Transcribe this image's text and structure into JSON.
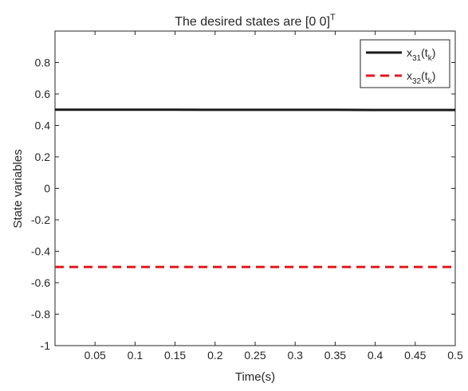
{
  "chart_data": {
    "type": "line",
    "title": {
      "base": "The desired states are [0 0]",
      "sup": "T"
    },
    "xlabel": "Time(s)",
    "ylabel": "State variables",
    "xlim": [
      0,
      0.5
    ],
    "ylim": [
      -1,
      1
    ],
    "xticks": [
      0.05,
      0.1,
      0.15,
      0.2,
      0.25,
      0.3,
      0.35,
      0.4,
      0.45,
      0.5
    ],
    "xtick_labels": [
      "0.05",
      "0.1",
      "0.15",
      "0.2",
      "0.25",
      "0.3",
      "0.35",
      "0.4",
      "0.45",
      "0.5"
    ],
    "yticks": [
      -1,
      -0.8,
      -0.6,
      -0.4,
      -0.2,
      0,
      0.2,
      0.4,
      0.6,
      0.8
    ],
    "ytick_labels": [
      "-1",
      "-0.8",
      "-0.6",
      "-0.4",
      "-0.2",
      "0",
      "0.2",
      "0.4",
      "0.6",
      "0.8"
    ],
    "grid": false,
    "legend_position": "top-right",
    "series": [
      {
        "label": {
          "base": "x",
          "sub": "31",
          "paren_open": "(t",
          "paren_sub": "k",
          "paren_close": ")"
        },
        "color": "#1a1a1a",
        "style": "solid",
        "x": [
          0,
          0.05,
          0.1,
          0.15,
          0.2,
          0.25,
          0.3,
          0.35,
          0.4,
          0.45,
          0.5
        ],
        "y": [
          0.5,
          0.5,
          0.5,
          0.5,
          0.499,
          0.499,
          0.499,
          0.499,
          0.498,
          0.498,
          0.498
        ]
      },
      {
        "label": {
          "base": "x",
          "sub": "32",
          "paren_open": "(t",
          "paren_sub": "k",
          "paren_close": ")"
        },
        "color": "#e3191c",
        "style": "dashed",
        "x": [
          0,
          0.05,
          0.1,
          0.15,
          0.2,
          0.25,
          0.3,
          0.35,
          0.4,
          0.45,
          0.5
        ],
        "y": [
          -0.5,
          -0.5,
          -0.5,
          -0.5,
          -0.5,
          -0.5,
          -0.5,
          -0.5,
          -0.5,
          -0.5,
          -0.5
        ]
      }
    ]
  }
}
